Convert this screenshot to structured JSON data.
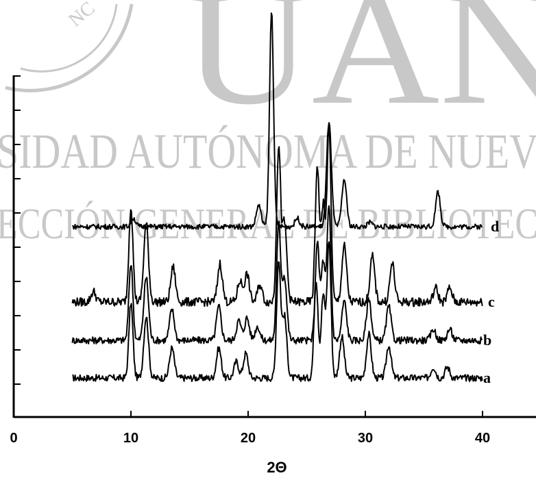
{
  "watermark": {
    "big_letters": "UAN",
    "line1": "SIDAD AUTÓNOMA DE NUEV",
    "line2": "ECCIÓN GENERAL DE BIBLIOTEC",
    "seal_text": "NC",
    "color": "#c8c8c8"
  },
  "chart_data": {
    "type": "line",
    "title": "",
    "xlabel": "2Θ",
    "ylabel": "",
    "xlim": [
      0,
      45
    ],
    "xticks": [
      0,
      10,
      20,
      30,
      40
    ],
    "xtick_labels": [
      "0",
      "10",
      "20",
      "30",
      "40"
    ],
    "x_data_range": [
      5,
      40
    ],
    "y_minor_ticks": 10,
    "grid": false,
    "legend": "none",
    "line_color": "#000000",
    "series": [
      {
        "name": "a",
        "peaks": [
          {
            "x": 10.0,
            "h": 0.55
          },
          {
            "x": 11.3,
            "h": 0.45
          },
          {
            "x": 13.5,
            "h": 0.22
          },
          {
            "x": 17.5,
            "h": 0.22
          },
          {
            "x": 19.0,
            "h": 0.12
          },
          {
            "x": 19.8,
            "h": 0.18
          },
          {
            "x": 22.6,
            "h": 0.85
          },
          {
            "x": 23.1,
            "h": 0.45
          },
          {
            "x": 25.8,
            "h": 0.72
          },
          {
            "x": 26.4,
            "h": 0.6
          },
          {
            "x": 26.9,
            "h": 1.0
          },
          {
            "x": 28.0,
            "h": 0.3
          },
          {
            "x": 30.3,
            "h": 0.32
          },
          {
            "x": 32.0,
            "h": 0.24
          },
          {
            "x": 35.8,
            "h": 0.08
          },
          {
            "x": 37.0,
            "h": 0.08
          }
        ]
      },
      {
        "name": "b",
        "peaks": [
          {
            "x": 10.0,
            "h": 0.55
          },
          {
            "x": 11.3,
            "h": 0.45
          },
          {
            "x": 13.5,
            "h": 0.22
          },
          {
            "x": 17.5,
            "h": 0.24
          },
          {
            "x": 19.2,
            "h": 0.14
          },
          {
            "x": 19.9,
            "h": 0.16
          },
          {
            "x": 20.8,
            "h": 0.1
          },
          {
            "x": 22.6,
            "h": 0.82
          },
          {
            "x": 23.1,
            "h": 0.45
          },
          {
            "x": 25.9,
            "h": 0.7
          },
          {
            "x": 26.4,
            "h": 0.55
          },
          {
            "x": 26.9,
            "h": 0.95
          },
          {
            "x": 28.2,
            "h": 0.28
          },
          {
            "x": 30.3,
            "h": 0.3
          },
          {
            "x": 32.0,
            "h": 0.24
          },
          {
            "x": 35.8,
            "h": 0.08
          },
          {
            "x": 37.2,
            "h": 0.08
          }
        ]
      },
      {
        "name": "c",
        "peaks": [
          {
            "x": 6.8,
            "h": 0.06
          },
          {
            "x": 10.0,
            "h": 0.55
          },
          {
            "x": 11.3,
            "h": 0.45
          },
          {
            "x": 13.6,
            "h": 0.2
          },
          {
            "x": 17.6,
            "h": 0.22
          },
          {
            "x": 19.3,
            "h": 0.12
          },
          {
            "x": 19.9,
            "h": 0.16
          },
          {
            "x": 21.0,
            "h": 0.1
          },
          {
            "x": 22.6,
            "h": 0.88
          },
          {
            "x": 23.1,
            "h": 0.45
          },
          {
            "x": 25.9,
            "h": 0.78
          },
          {
            "x": 26.4,
            "h": 0.55
          },
          {
            "x": 26.9,
            "h": 1.0
          },
          {
            "x": 28.2,
            "h": 0.32
          },
          {
            "x": 30.6,
            "h": 0.26
          },
          {
            "x": 32.3,
            "h": 0.22
          },
          {
            "x": 36.0,
            "h": 0.08
          },
          {
            "x": 37.2,
            "h": 0.08
          }
        ]
      },
      {
        "name": "d",
        "peaks": [
          {
            "x": 10.2,
            "h": 0.04
          },
          {
            "x": 20.9,
            "h": 0.1
          },
          {
            "x": 22.0,
            "h": 1.0
          },
          {
            "x": 24.2,
            "h": 0.04
          },
          {
            "x": 26.9,
            "h": 0.49
          },
          {
            "x": 28.2,
            "h": 0.22
          },
          {
            "x": 30.4,
            "h": 0.02
          },
          {
            "x": 36.2,
            "h": 0.16
          }
        ]
      }
    ]
  }
}
